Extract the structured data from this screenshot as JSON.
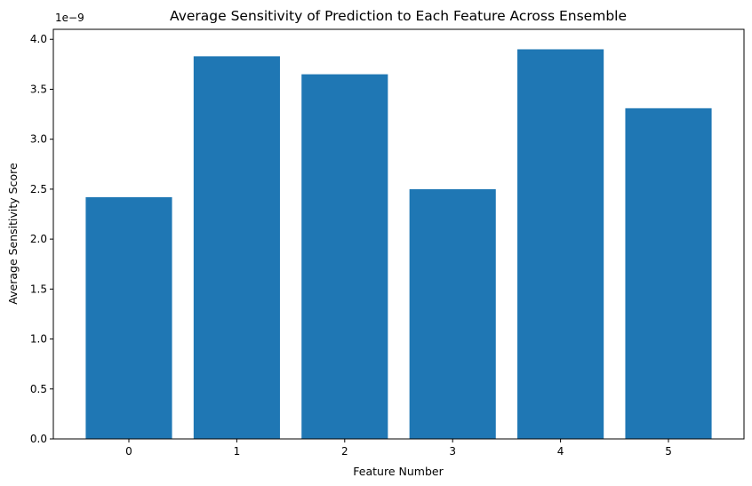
{
  "chart_data": {
    "type": "bar",
    "title": "Average Sensitivity of Prediction to Each Feature Across Ensemble",
    "xlabel": "Feature Number",
    "ylabel": "Average Sensitivity Score",
    "y_offset_label": "1e−9",
    "categories": [
      "0",
      "1",
      "2",
      "3",
      "4",
      "5"
    ],
    "values": [
      2.42e-09,
      3.83e-09,
      3.65e-09,
      2.5e-09,
      3.9e-09,
      3.31e-09
    ],
    "ylim": [
      0,
      4.1e-09
    ],
    "y_ticks": [
      0,
      5e-10,
      1e-09,
      1.5e-09,
      2e-09,
      2.5e-09,
      3e-09,
      3.5e-09,
      4e-09
    ],
    "y_tick_labels": [
      "0.0",
      "0.5",
      "1.0",
      "1.5",
      "2.0",
      "2.5",
      "3.0",
      "3.5",
      "4.0"
    ],
    "bar_color": "#1f77b4",
    "grid": false,
    "legend": "none"
  }
}
